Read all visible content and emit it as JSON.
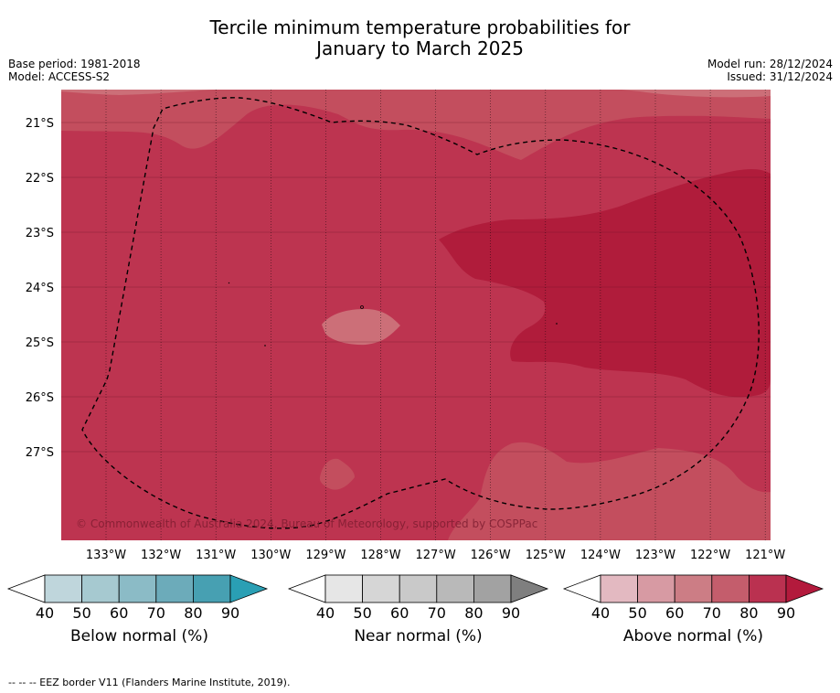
{
  "title": {
    "line1": "Tercile minimum temperature probabilities for",
    "line2": "January to March 2025"
  },
  "meta_left": {
    "base_period": "Base period: 1981-2018",
    "model": "Model: ACCESS-S2"
  },
  "meta_right": {
    "model_run": "Model run: 28/12/2024",
    "issued": "Issued: 31/12/2024"
  },
  "map": {
    "lat_labels": [
      "21°S",
      "22°S",
      "23°S",
      "24°S",
      "25°S",
      "26°S",
      "27°S"
    ],
    "lon_labels": [
      "133°W",
      "132°W",
      "131°W",
      "130°W",
      "129°W",
      "128°W",
      "127°W",
      "126°W",
      "125°W",
      "124°W",
      "123°W",
      "122°W",
      "121°W"
    ],
    "copyright": "© Commonwealth of Australia 2024, Bureau of Meteorology, supported by COSPPac",
    "colors": {
      "base": "#bd3450",
      "light": "#c34e5e",
      "dark": "#b01c3b",
      "patch": "#cc6f78"
    }
  },
  "colorbars": {
    "ticks": [
      "40",
      "50",
      "60",
      "70",
      "80",
      "90"
    ],
    "below": {
      "label": "Below normal (%)",
      "colors": [
        "#bfd6dc",
        "#a6c9d0",
        "#8bbbc6",
        "#6cabba",
        "#47a0b2",
        "#2a9fb4"
      ]
    },
    "near": {
      "label": "Near normal (%)",
      "colors": [
        "#e6e6e6",
        "#d6d6d6",
        "#c9c9c9",
        "#b9b9b9",
        "#a2a2a2",
        "#7f7f7f"
      ]
    },
    "above": {
      "label": "Above normal (%)",
      "colors": [
        "#e3b9c1",
        "#d79aa3",
        "#cc7d85",
        "#c45d6c",
        "#ba3150",
        "#b31a3c"
      ]
    }
  },
  "footer": "--  --  -- EEZ border V11 (Flanders Marine Institute, 2019)."
}
